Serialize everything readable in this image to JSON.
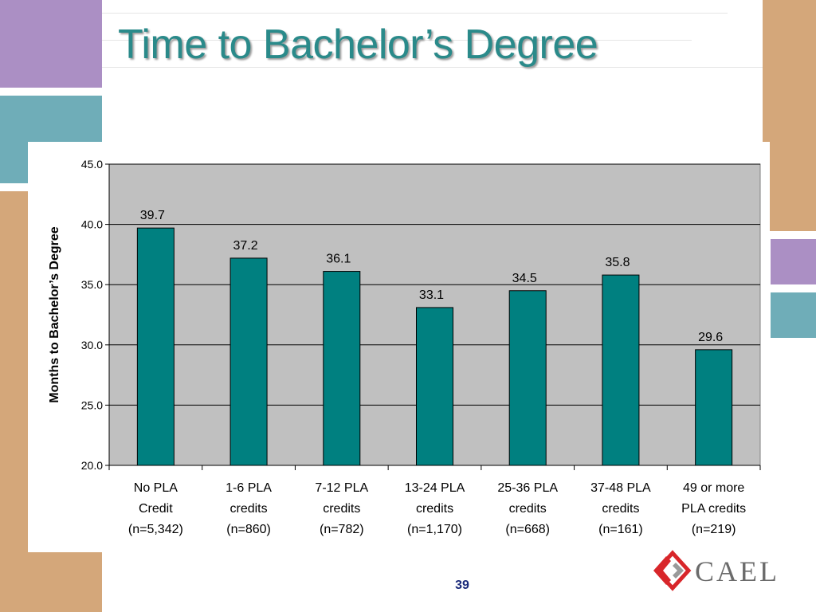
{
  "slide": {
    "title": "Time to Bachelor’s Degree",
    "page_number": "39",
    "logo_text": "CAEL"
  },
  "colors": {
    "bar_fill": "#008080",
    "plot_bg": "#c0c0c0",
    "title": "#2a8a8a",
    "purple_block": "#ab8fc4",
    "teal_block": "#6fadb8",
    "tan_block": "#d4a77a",
    "logo_red": "#d8262a"
  },
  "chart_data": {
    "type": "bar",
    "ylabel": "Months to Bachelor’s Degree",
    "ylim": [
      20.0,
      45.0
    ],
    "yticks": [
      "20.0",
      "25.0",
      "30.0",
      "35.0",
      "40.0",
      "45.0"
    ],
    "grid": true,
    "categories": [
      [
        "No PLA",
        "Credit",
        "(n=5,342)"
      ],
      [
        "1-6 PLA",
        "credits",
        "(n=860)"
      ],
      [
        "7-12 PLA",
        "credits",
        "(n=782)"
      ],
      [
        "13-24 PLA",
        "credits",
        "(n=1,170)"
      ],
      [
        "25-36 PLA",
        "credits",
        "(n=668)"
      ],
      [
        "37-48 PLA",
        "credits",
        "(n=161)"
      ],
      [
        "49 or more",
        "PLA credits",
        "(n=219)"
      ]
    ],
    "values": [
      39.7,
      37.2,
      36.1,
      33.1,
      34.5,
      35.8,
      29.6
    ],
    "data_labels": [
      "39.7",
      "37.2",
      "36.1",
      "33.1",
      "34.5",
      "35.8",
      "29.6"
    ]
  }
}
